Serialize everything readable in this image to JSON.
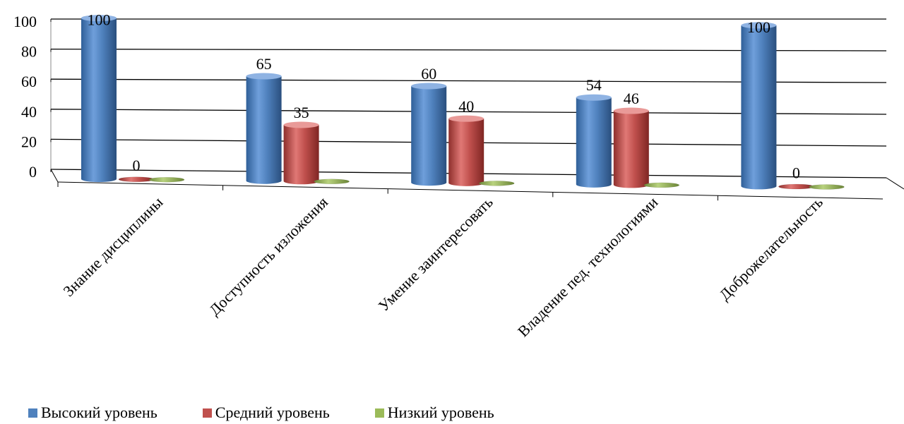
{
  "chart_data": {
    "type": "bar",
    "variant": "3d-cylinder",
    "categories": [
      "Знание дисциплины",
      "Доступность изложения",
      "Умение заинтересовать",
      "Владение пед. технологиями",
      "Доброжелательность"
    ],
    "series": [
      {
        "name": "Высокий уровень",
        "color": "#4f81bd",
        "values": [
          100,
          65,
          60,
          54,
          100
        ]
      },
      {
        "name": "Средний уровень",
        "color": "#c0504d",
        "values": [
          0,
          35,
          40,
          46,
          0
        ]
      },
      {
        "name": "Низкий уровень",
        "color": "#9bbb59",
        "values": [
          0,
          0,
          0,
          0,
          0
        ]
      }
    ],
    "data_labels": [
      [
        "100",
        "65",
        "60",
        "54",
        "100"
      ],
      [
        "0",
        "35",
        "40",
        "46",
        "0"
      ],
      [
        "",
        "",
        "",
        "",
        ""
      ]
    ],
    "y_ticks": [
      "0",
      "20",
      "40",
      "60",
      "80",
      "100"
    ],
    "ylim": [
      0,
      100
    ],
    "grid": true,
    "legend": "bottom-left"
  }
}
